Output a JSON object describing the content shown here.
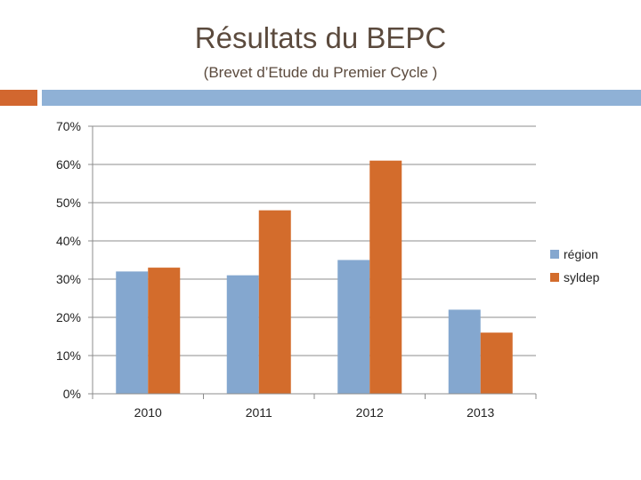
{
  "slide": {
    "title": "Résultats du BEPC",
    "subtitle": "(Brevet d’Etude du Premier Cycle )",
    "accent_colors": {
      "orange": "#d2672f",
      "blue": "#8fb1d6"
    }
  },
  "chart_data": {
    "type": "bar",
    "categories": [
      "2010",
      "2011",
      "2012",
      "2013"
    ],
    "series": [
      {
        "name": "région",
        "values": [
          32,
          31,
          35,
          22
        ],
        "color": "#84a7cf"
      },
      {
        "name": "syldep",
        "values": [
          33,
          48,
          61,
          16
        ],
        "color": "#d36c2c"
      }
    ],
    "ylim": [
      0,
      70
    ],
    "yticks": [
      0,
      10,
      20,
      30,
      40,
      50,
      60,
      70
    ],
    "ytick_labels": [
      "0%",
      "10%",
      "20%",
      "30%",
      "40%",
      "50%",
      "60%",
      "70%"
    ],
    "grid": true,
    "legend": "right"
  }
}
